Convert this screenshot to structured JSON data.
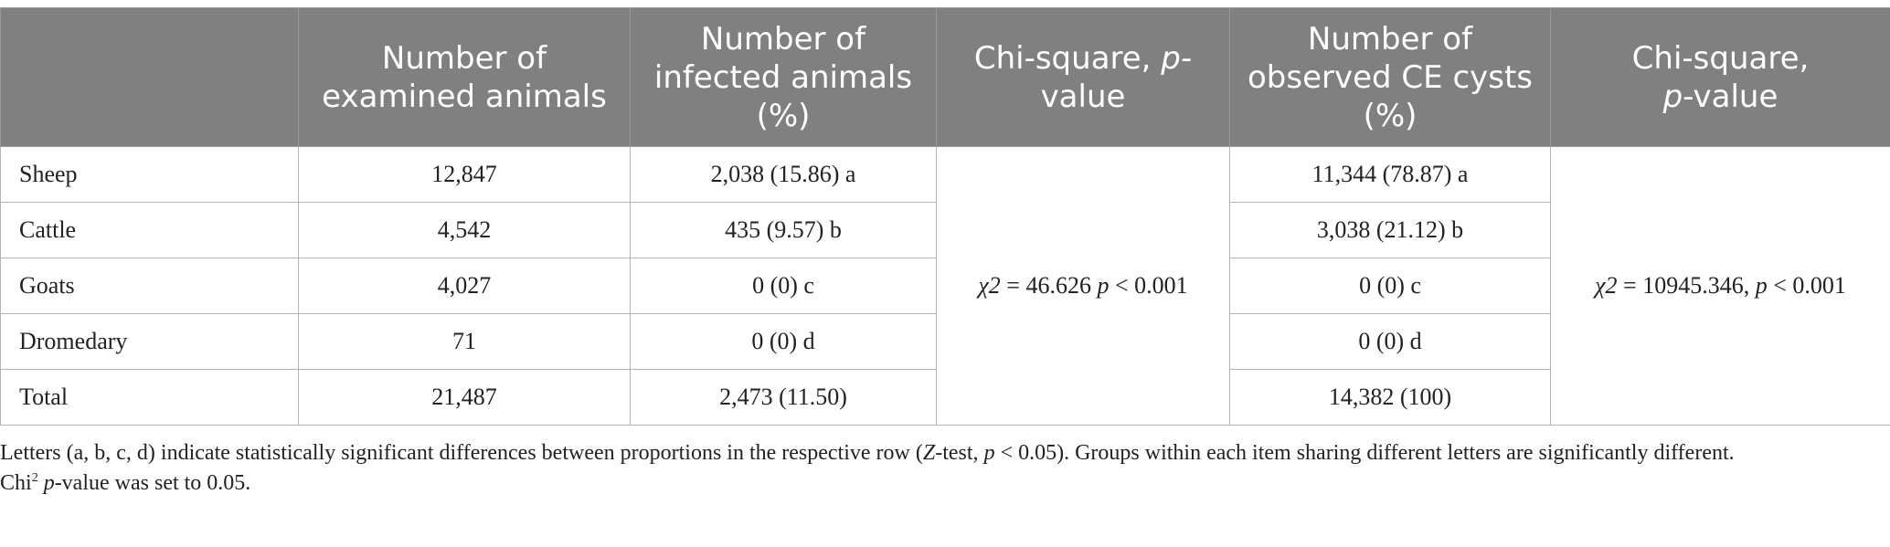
{
  "table": {
    "headers": [
      "",
      "Number of examined animals",
      "Number of infected animals (%)",
      "Chi-square, ",
      "Number of observed CE cysts (%)",
      "Chi-square, "
    ],
    "header_p_value_col3": "p-",
    "header_value_col3": "value",
    "header_p_value_col5": "p",
    "header_value_col5": "-value",
    "rows": [
      {
        "label": "Sheep",
        "examined": "12,847",
        "infected": "2,038 (15.86) a",
        "cysts": "11,344 (78.87) a"
      },
      {
        "label": "Cattle",
        "examined": "4,542",
        "infected": "435 (9.57) b",
        "cysts": "3,038 (21.12) b"
      },
      {
        "label": "Goats",
        "examined": "4,027",
        "infected": "0 (0) c",
        "cysts": "0 (0) c"
      },
      {
        "label": "Dromedary",
        "examined": "71",
        "infected": "0 (0) d",
        "cysts": "0 (0) d"
      },
      {
        "label": "Total",
        "examined": "21,487",
        "infected": "2,473 (11.50)",
        "cysts": "14,382 (100)"
      }
    ],
    "chi_infected": {
      "chi": "χ2",
      "eq": " = 46.626 ",
      "p": "p",
      "rest": " < 0.001"
    },
    "chi_cysts": {
      "chi": "χ2",
      "eq": " = 10945.346, ",
      "p": "p",
      "rest": " < 0.001"
    }
  },
  "notes": {
    "line1_a": "Letters (a, b, c, d) indicate statistically significant differences between proportions in the respective row (",
    "line1_z": "Z",
    "line1_b": "-test, ",
    "line1_p": "p",
    "line1_c": " < 0.05). Groups within each item sharing different letters are significantly different.",
    "line2_a": "Chi",
    "line2_sup": "2",
    "line2_p": "p",
    "line2_b": "-value was set to 0.05."
  }
}
